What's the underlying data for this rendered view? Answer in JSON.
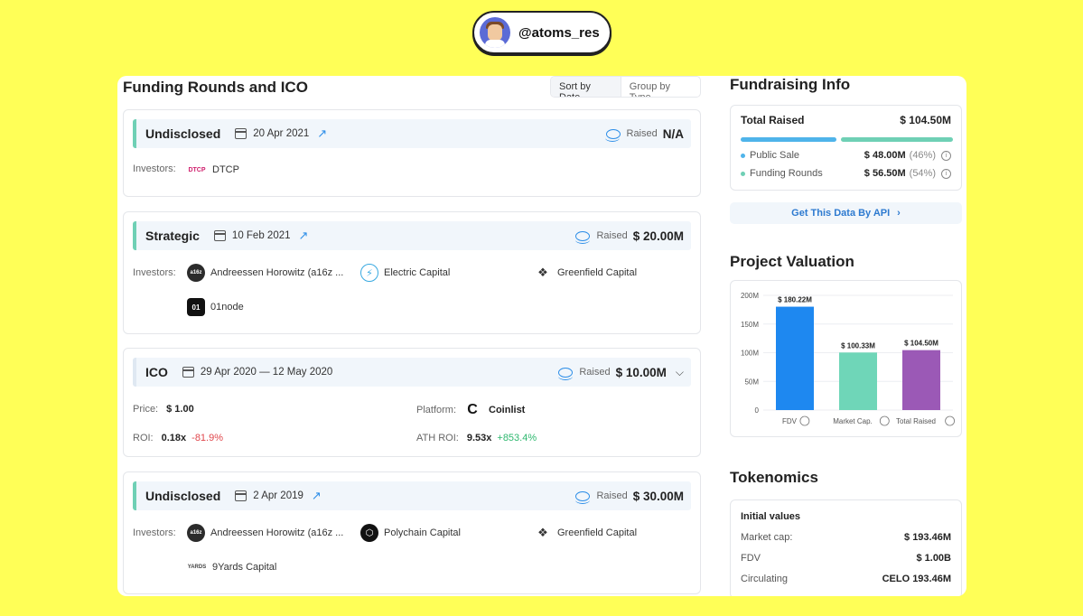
{
  "badge": {
    "handle": "@atoms_res"
  },
  "funding": {
    "title": "Funding Rounds and ICO",
    "sort": [
      "Sort by Date",
      "Group by Type"
    ],
    "investors_label": "Investors:",
    "raised_label": "Raised",
    "rounds": [
      {
        "type": "Undisclosed",
        "date": "20 Apr 2021",
        "amount": "N/A",
        "investors": [
          "DTCP"
        ]
      },
      {
        "type": "Strategic",
        "date": "10 Feb 2021",
        "amount": "$ 20.00M",
        "investors": [
          "Andreessen Horowitz (a16z ...",
          "Electric Capital",
          "Greenfield Capital",
          "01node"
        ]
      },
      {
        "type": "ICO",
        "date": "29 Apr 2020 — 12 May 2020",
        "amount": "$ 10.00M",
        "price_label": "Price:",
        "price": "$ 1.00",
        "platform_label": "Platform:",
        "platform": "Coinlist",
        "roi_label": "ROI:",
        "roi": "0.18x",
        "roi_pct": "-81.9%",
        "ath_label": "ATH ROI:",
        "ath": "9.53x",
        "ath_pct": "+853.4%"
      },
      {
        "type": "Undisclosed",
        "date": "2 Apr 2019",
        "amount": "$ 30.00M",
        "investors": [
          "Andreessen Horowitz (a16z ...",
          "Polychain Capital",
          "Greenfield Capital",
          "9Yards Capital"
        ]
      }
    ]
  },
  "fundraising": {
    "title": "Fundraising Info",
    "total_label": "Total Raised",
    "total": "$ 104.50M",
    "public_label": "Public Sale",
    "public": "$ 48.00M",
    "public_pct": "(46%)",
    "public_share": 0.46,
    "rounds_label": "Funding Rounds",
    "rounds": "$ 56.50M",
    "rounds_pct": "(54%)",
    "api": "Get This Data By API"
  },
  "valuation": {
    "title": "Project Valuation"
  },
  "chart_data": {
    "type": "bar",
    "categories": [
      "FDV",
      "Market Cap.",
      "Total Raised"
    ],
    "values": [
      180.22,
      100.33,
      104.5
    ],
    "labels": [
      "$ 180.22M",
      "$ 100.33M",
      "$ 104.50M"
    ],
    "colors": [
      "#1e88f0",
      "#6fd6b8",
      "#9b59b6"
    ],
    "ylim": [
      0,
      200
    ],
    "yticks": [
      0,
      50,
      100,
      150,
      200
    ],
    "ytick_labels": [
      "0",
      "50M",
      "100M",
      "150M",
      "200M"
    ],
    "title": "Project Valuation"
  },
  "tokenomics": {
    "title": "Tokenomics",
    "initial": "Initial values",
    "rows": [
      {
        "k": "Market cap:",
        "v": "$ 193.46M"
      },
      {
        "k": "FDV",
        "v": "$ 1.00B"
      },
      {
        "k": "Circulating",
        "v": "CELO 193.46M"
      }
    ]
  },
  "colors": {
    "accent": "#2d8ee8",
    "round_bar": "#6fd0b5",
    "background": "#ffff57"
  }
}
